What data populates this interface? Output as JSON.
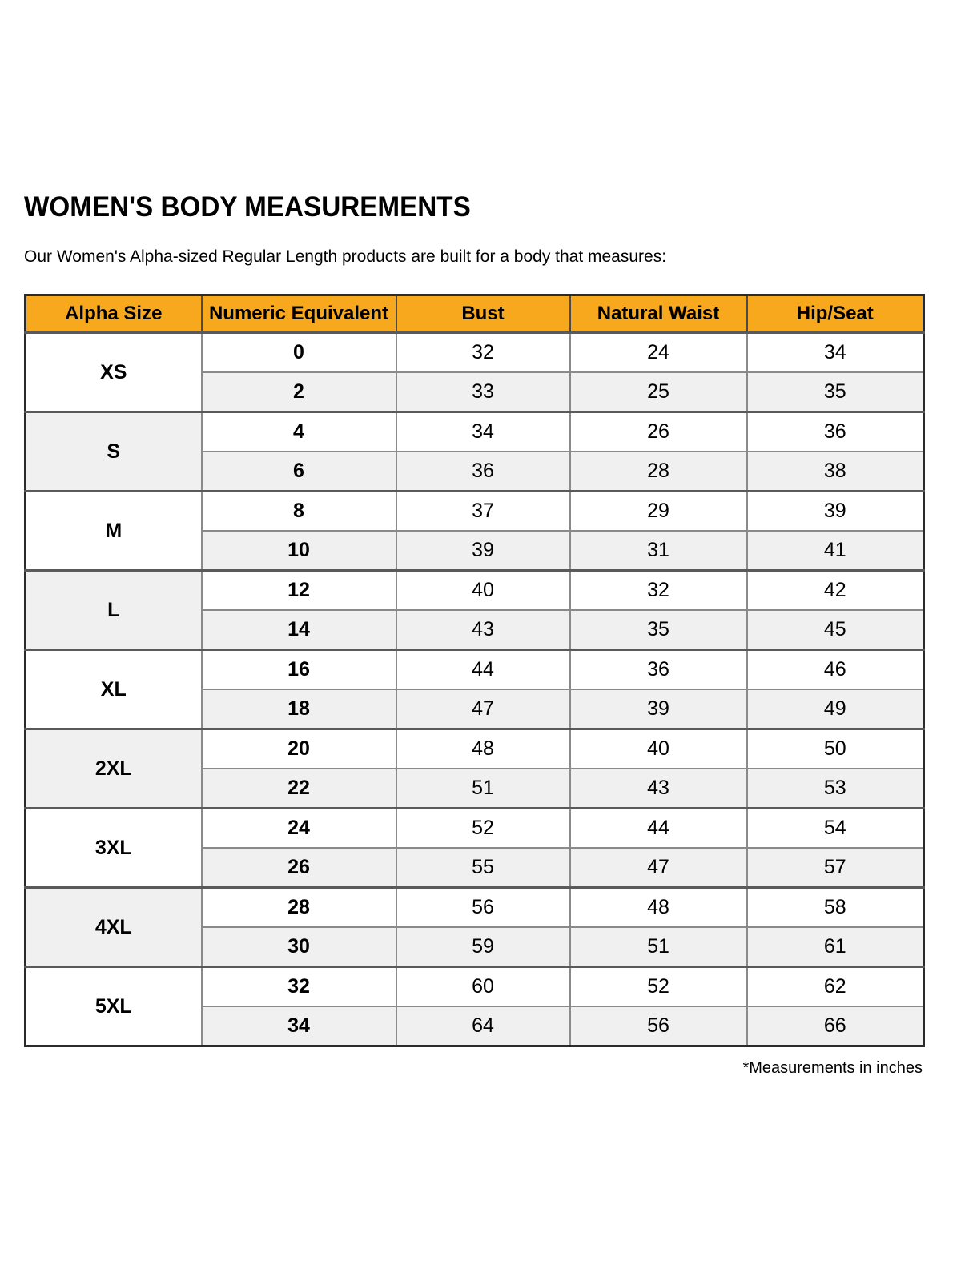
{
  "page": {
    "title": "WOMEN'S BODY MEASUREMENTS",
    "subtitle": "Our Women's Alpha-sized Regular Length products are built for a body that measures:",
    "footnote": "*Measurements in inches"
  },
  "colors": {
    "header_bg": "#F7A81C",
    "row_shade_bg": "#F0F0F0",
    "border_dark": "#2B2B2B",
    "border_gray": "#8A8A8A",
    "text": "#000000"
  },
  "table": {
    "headers": [
      "Alpha Size",
      "Numeric Equivalent",
      "Bust",
      "Natural Waist",
      "Hip/Seat"
    ],
    "groups": [
      {
        "alpha": "XS",
        "rows": [
          [
            "0",
            "32",
            "24",
            "34"
          ],
          [
            "2",
            "33",
            "25",
            "35"
          ]
        ]
      },
      {
        "alpha": "S",
        "rows": [
          [
            "4",
            "34",
            "26",
            "36"
          ],
          [
            "6",
            "36",
            "28",
            "38"
          ]
        ]
      },
      {
        "alpha": "M",
        "rows": [
          [
            "8",
            "37",
            "29",
            "39"
          ],
          [
            "10",
            "39",
            "31",
            "41"
          ]
        ]
      },
      {
        "alpha": "L",
        "rows": [
          [
            "12",
            "40",
            "32",
            "42"
          ],
          [
            "14",
            "43",
            "35",
            "45"
          ]
        ]
      },
      {
        "alpha": "XL",
        "rows": [
          [
            "16",
            "44",
            "36",
            "46"
          ],
          [
            "18",
            "47",
            "39",
            "49"
          ]
        ]
      },
      {
        "alpha": "2XL",
        "rows": [
          [
            "20",
            "48",
            "40",
            "50"
          ],
          [
            "22",
            "51",
            "43",
            "53"
          ]
        ]
      },
      {
        "alpha": "3XL",
        "rows": [
          [
            "24",
            "52",
            "44",
            "54"
          ],
          [
            "26",
            "55",
            "47",
            "57"
          ]
        ]
      },
      {
        "alpha": "4XL",
        "rows": [
          [
            "28",
            "56",
            "48",
            "58"
          ],
          [
            "30",
            "59",
            "51",
            "61"
          ]
        ]
      },
      {
        "alpha": "5XL",
        "rows": [
          [
            "32",
            "60",
            "52",
            "62"
          ],
          [
            "34",
            "64",
            "56",
            "66"
          ]
        ]
      }
    ]
  }
}
